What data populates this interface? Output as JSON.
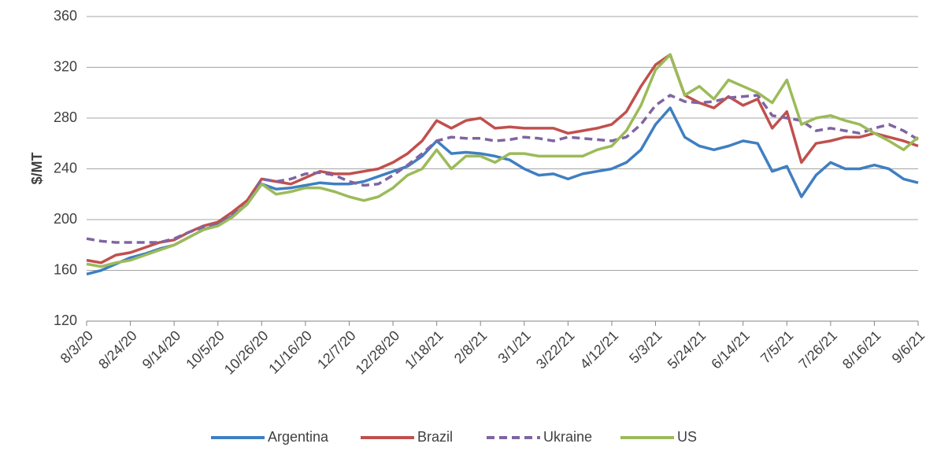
{
  "chart_data": {
    "type": "line",
    "y_label": "$/MT",
    "categories": [
      "8/3/20",
      null,
      null,
      "8/24/20",
      null,
      null,
      "9/14/20",
      null,
      null,
      "10/5/20",
      null,
      null,
      "10/26/20",
      null,
      null,
      "11/16/20",
      null,
      null,
      "12/7/20",
      null,
      null,
      "12/28/20",
      null,
      null,
      "1/18/21",
      null,
      null,
      "2/8/21",
      null,
      null,
      "3/1/21",
      null,
      null,
      "3/22/21",
      null,
      null,
      "4/12/21",
      null,
      null,
      "5/3/21",
      null,
      null,
      "5/24/21",
      null,
      null,
      "6/14/21",
      null,
      null,
      "7/5/21",
      null,
      null,
      "7/26/21",
      null,
      null,
      "8/16/21",
      null,
      null,
      "9/6/21"
    ],
    "series": [
      {
        "name": "Argentina",
        "color": "#3f7fc1",
        "style": "solid",
        "values": [
          157,
          160,
          165,
          170,
          173,
          177,
          180,
          186,
          192,
          196,
          203,
          212,
          228,
          224,
          225,
          227,
          229,
          228,
          228,
          230,
          234,
          238,
          242,
          250,
          262,
          252,
          253,
          252,
          250,
          247,
          240,
          235,
          236,
          232,
          236,
          238,
          240,
          245,
          255,
          275,
          288,
          265,
          258,
          255,
          258,
          262,
          260,
          238,
          242,
          218,
          235,
          245,
          240,
          240,
          243,
          240,
          232,
          229
        ]
      },
      {
        "name": "Brazil",
        "color": "#c0504d",
        "style": "solid",
        "values": [
          168,
          166,
          172,
          174,
          178,
          182,
          184,
          190,
          195,
          198,
          206,
          215,
          232,
          230,
          228,
          233,
          238,
          236,
          236,
          238,
          240,
          245,
          252,
          262,
          278,
          272,
          278,
          280,
          272,
          273,
          272,
          272,
          272,
          268,
          270,
          272,
          275,
          285,
          305,
          322,
          330,
          298,
          292,
          288,
          297,
          290,
          295,
          272,
          285,
          245,
          260,
          262,
          265,
          265,
          268,
          265,
          262,
          258
        ]
      },
      {
        "name": "Ukraine",
        "color": "#8064a2",
        "style": "dashed",
        "values": [
          185,
          183,
          182,
          182,
          182,
          182,
          185,
          190,
          194,
          196,
          204,
          212,
          232,
          230,
          232,
          236,
          237,
          235,
          230,
          227,
          228,
          235,
          243,
          252,
          262,
          265,
          264,
          264,
          262,
          263,
          265,
          264,
          262,
          265,
          264,
          263,
          262,
          265,
          275,
          290,
          298,
          293,
          292,
          293,
          296,
          297,
          298,
          282,
          280,
          278,
          270,
          272,
          270,
          268,
          272,
          275,
          270,
          263
        ]
      },
      {
        "name": "US",
        "color": "#9bbb59",
        "style": "solid",
        "values": [
          165,
          163,
          166,
          168,
          172,
          176,
          180,
          186,
          192,
          195,
          202,
          212,
          228,
          220,
          222,
          225,
          225,
          222,
          218,
          215,
          218,
          225,
          235,
          240,
          255,
          240,
          250,
          250,
          245,
          252,
          252,
          250,
          250,
          250,
          250,
          255,
          258,
          270,
          290,
          318,
          330,
          298,
          305,
          295,
          310,
          305,
          300,
          292,
          310,
          275,
          280,
          282,
          278,
          275,
          268,
          262,
          255,
          265
        ]
      }
    ],
    "ylim": [
      120,
      360
    ],
    "yticks": [
      120,
      160,
      200,
      240,
      280,
      320,
      360
    ],
    "grid": true,
    "legend": "bottom"
  }
}
